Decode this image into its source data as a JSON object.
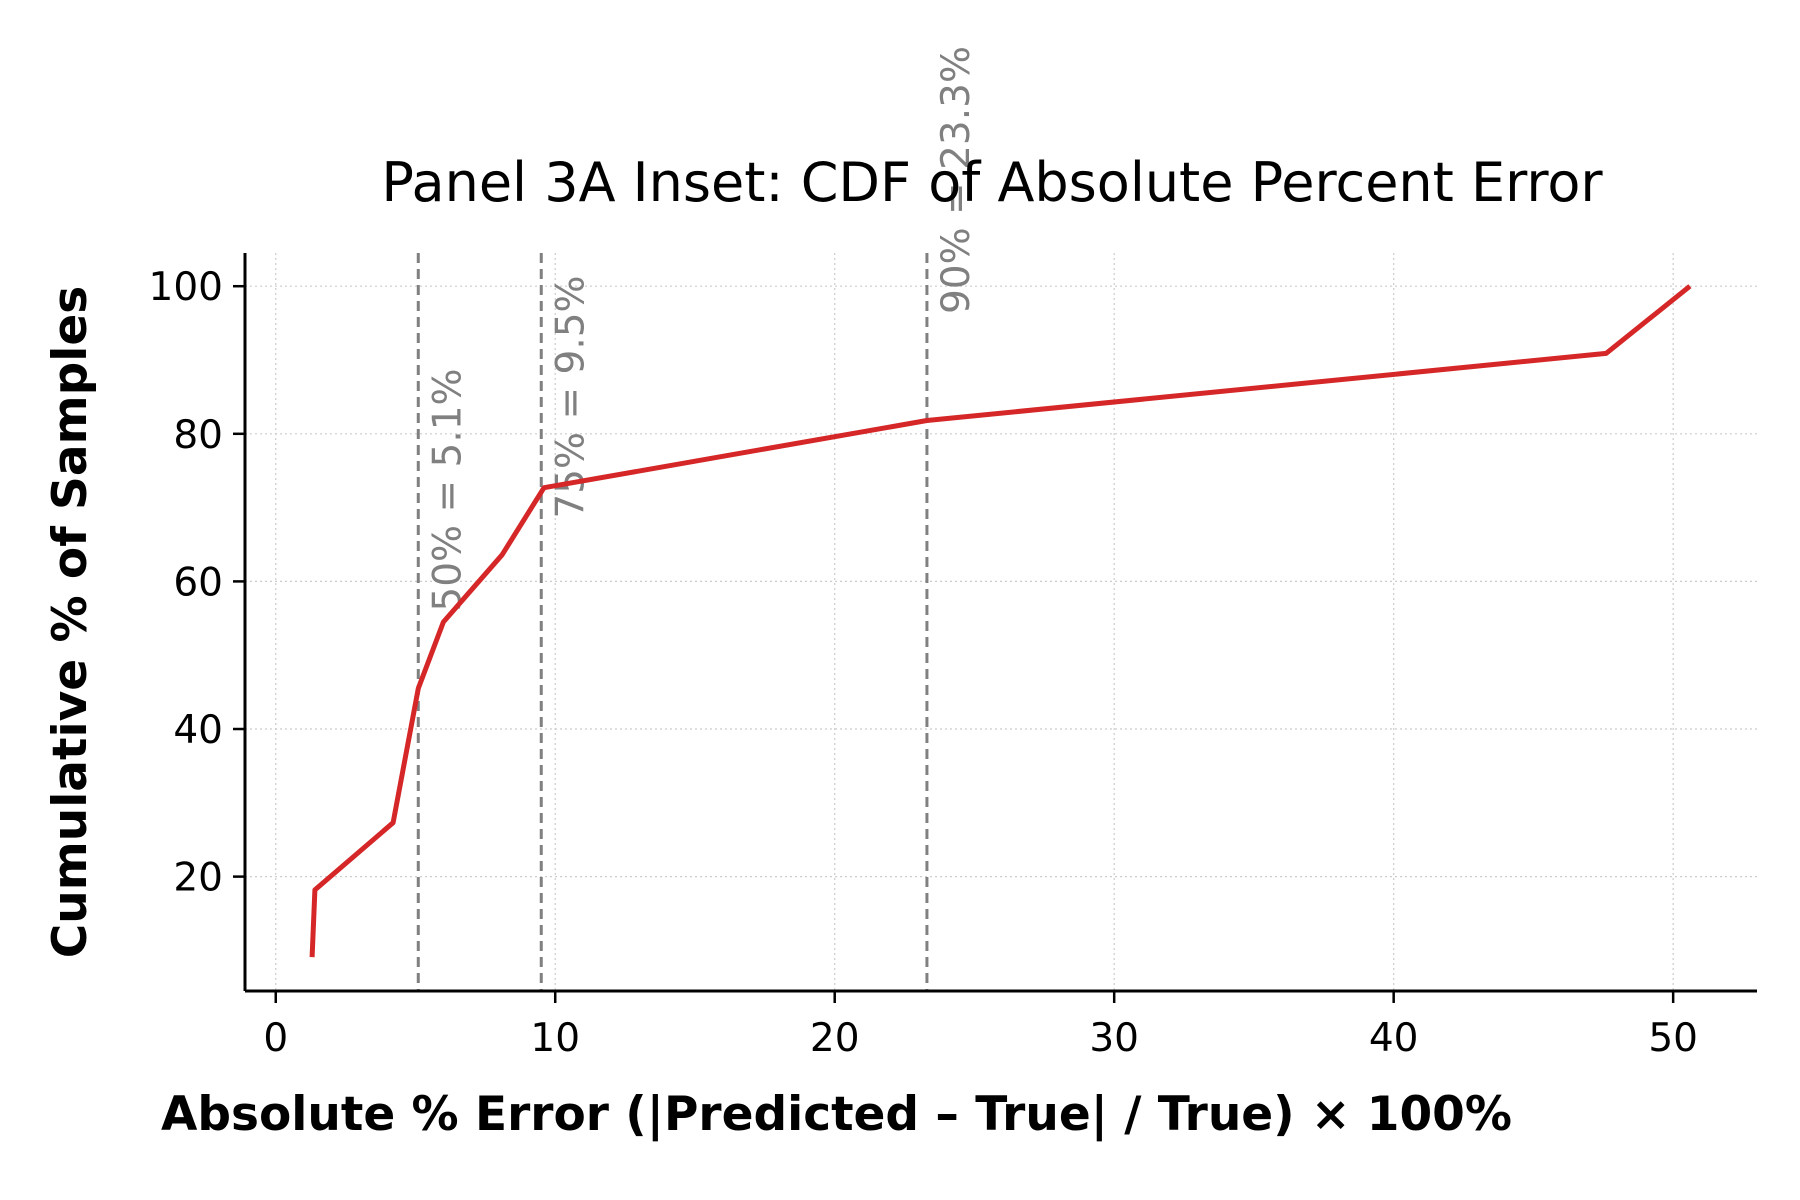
{
  "chart_data": {
    "type": "line",
    "title": "Panel 3A Inset: CDF of Absolute Percent Error",
    "xlabel": "Absolute % Error (|Predicted – True| / True) × 100%",
    "ylabel": "Cumulative % of Samples",
    "xlim": [
      -1.1,
      53
    ],
    "ylim": [
      4.5,
      104.5
    ],
    "xticks": [
      0,
      10,
      20,
      30,
      40,
      50
    ],
    "yticks": [
      20,
      40,
      60,
      80,
      100
    ],
    "grid": true,
    "series": [
      {
        "color": "#d62728",
        "x": [
          1.3,
          1.4,
          4.2,
          5.1,
          6.0,
          8.1,
          9.6,
          23.3,
          47.6,
          50.6
        ],
        "y": [
          9.1,
          18.2,
          27.3,
          45.5,
          54.5,
          63.6,
          72.7,
          81.8,
          90.9,
          100.0
        ]
      }
    ],
    "reference_lines": [
      {
        "x": 5.1,
        "label": "50% = 5.1%"
      },
      {
        "x": 9.5,
        "label": "75% = 9.5%"
      },
      {
        "x": 23.3,
        "label": "90% = 23.3%"
      }
    ]
  }
}
